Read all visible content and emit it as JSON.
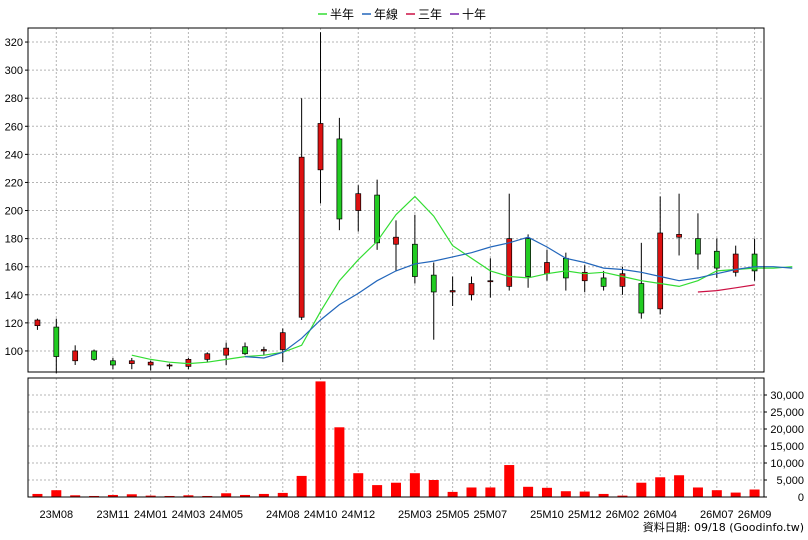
{
  "chart_data": {
    "type": "candlestick",
    "legend": [
      {
        "label": "半年",
        "color": "#33dd33"
      },
      {
        "label": "年線",
        "color": "#2266bb"
      },
      {
        "label": "三年",
        "color": "#cc1144"
      },
      {
        "label": "十年",
        "color": "#7722aa"
      }
    ],
    "colors": {
      "up": "#dd1111",
      "down": "#22cc22",
      "volume": "#ff0000"
    },
    "price_axis": {
      "ylim": [
        85,
        330
      ],
      "ticks": [
        100,
        120,
        140,
        160,
        180,
        200,
        220,
        240,
        260,
        280,
        300,
        320
      ]
    },
    "volume_axis": {
      "ylim": [
        0,
        35000
      ],
      "ticks": [
        0,
        5000,
        10000,
        15000,
        20000,
        25000,
        30000
      ],
      "tick_labels": [
        "0",
        "5,000",
        "10,000",
        "15,000",
        "20,000",
        "25,000",
        "30,000"
      ]
    },
    "x_labels": [
      {
        "label": "23M08",
        "index": 1
      },
      {
        "label": "23M11",
        "index": 4
      },
      {
        "label": "24M01",
        "index": 6
      },
      {
        "label": "24M03",
        "index": 8
      },
      {
        "label": "24M05",
        "index": 10
      },
      {
        "label": "24M08",
        "index": 13
      },
      {
        "label": "24M10",
        "index": 15
      },
      {
        "label": "24M12",
        "index": 17
      },
      {
        "label": "25M03",
        "index": 20
      },
      {
        "label": "25M05",
        "index": 22
      },
      {
        "label": "25M07",
        "index": 24
      },
      {
        "label": "25M10",
        "index": 27
      },
      {
        "label": "25M12",
        "index": 29
      },
      {
        "label": "26M02",
        "index": 31
      },
      {
        "label": "26M04",
        "index": 33
      },
      {
        "label": "26M07",
        "index": 36
      },
      {
        "label": "26M09",
        "index": 38
      }
    ],
    "candles": [
      {
        "o": 118,
        "h": 123,
        "l": 115,
        "c": 122
      },
      {
        "o": 117,
        "h": 123,
        "l": 84,
        "c": 96
      },
      {
        "o": 93,
        "h": 104,
        "l": 90,
        "c": 100
      },
      {
        "o": 100,
        "h": 101,
        "l": 93,
        "c": 94
      },
      {
        "o": 93,
        "h": 95,
        "l": 87,
        "c": 90
      },
      {
        "o": 91,
        "h": 95,
        "l": 87,
        "c": 93
      },
      {
        "o": 90,
        "h": 93,
        "l": 86,
        "c": 92
      },
      {
        "o": 90,
        "h": 91,
        "l": 87,
        "c": 90
      },
      {
        "o": 89,
        "h": 95,
        "l": 87,
        "c": 94
      },
      {
        "o": 94,
        "h": 99,
        "l": 92,
        "c": 98
      },
      {
        "o": 97,
        "h": 106,
        "l": 90,
        "c": 102
      },
      {
        "o": 103,
        "h": 106,
        "l": 97,
        "c": 98
      },
      {
        "o": 100,
        "h": 103,
        "l": 97,
        "c": 101
      },
      {
        "o": 101,
        "h": 116,
        "l": 92,
        "c": 113
      },
      {
        "o": 124,
        "h": 280,
        "l": 122,
        "c": 238
      },
      {
        "o": 229,
        "h": 327,
        "l": 205,
        "c": 262
      },
      {
        "o": 251,
        "h": 266,
        "l": 186,
        "c": 194
      },
      {
        "o": 200,
        "h": 218,
        "l": 185,
        "c": 212
      },
      {
        "o": 211,
        "h": 222,
        "l": 172,
        "c": 177
      },
      {
        "o": 176,
        "h": 193,
        "l": 157,
        "c": 181
      },
      {
        "o": 176,
        "h": 197,
        "l": 148,
        "c": 153
      },
      {
        "o": 154,
        "h": 163,
        "l": 108,
        "c": 142
      },
      {
        "o": 142,
        "h": 153,
        "l": 132,
        "c": 143
      },
      {
        "o": 140,
        "h": 153,
        "l": 136,
        "c": 148
      },
      {
        "o": 150,
        "h": 166,
        "l": 138,
        "c": 150
      },
      {
        "o": 146,
        "h": 212,
        "l": 143,
        "c": 180
      },
      {
        "o": 180,
        "h": 183,
        "l": 145,
        "c": 153
      },
      {
        "o": 155,
        "h": 172,
        "l": 150,
        "c": 163
      },
      {
        "o": 166,
        "h": 170,
        "l": 143,
        "c": 152
      },
      {
        "o": 150,
        "h": 161,
        "l": 142,
        "c": 156
      },
      {
        "o": 152,
        "h": 157,
        "l": 143,
        "c": 146
      },
      {
        "o": 146,
        "h": 160,
        "l": 140,
        "c": 155
      },
      {
        "o": 148,
        "h": 177,
        "l": 123,
        "c": 127
      },
      {
        "o": 130,
        "h": 210,
        "l": 126,
        "c": 184
      },
      {
        "o": 181,
        "h": 212,
        "l": 168,
        "c": 183
      },
      {
        "o": 180,
        "h": 198,
        "l": 158,
        "c": 169
      },
      {
        "o": 171,
        "h": 180,
        "l": 152,
        "c": 159
      },
      {
        "o": 156,
        "h": 175,
        "l": 153,
        "c": 169
      },
      {
        "o": 169,
        "h": 180,
        "l": 150,
        "c": 157
      }
    ],
    "volume": [
      900,
      2000,
      500,
      300,
      600,
      800,
      400,
      300,
      500,
      300,
      1100,
      600,
      900,
      1200,
      6200,
      34000,
      20500,
      7000,
      3500,
      4200,
      7000,
      5000,
      1500,
      2800,
      2800,
      9400,
      3000,
      2700,
      1700,
      1600,
      900,
      400,
      4200,
      5800,
      6400,
      2800,
      2000,
      1300,
      2200
    ],
    "series": [
      {
        "name": "半年",
        "color": "#33dd33",
        "start": 5,
        "values": [
          97,
          94,
          92,
          91,
          92,
          94,
          96,
          97,
          99,
          104,
          128,
          150,
          165,
          178,
          197,
          210,
          196,
          175,
          166,
          157,
          153,
          152,
          155,
          157,
          155,
          156,
          153,
          150,
          148,
          146,
          150,
          157,
          158,
          159,
          159,
          160
        ]
      },
      {
        "name": "年線",
        "color": "#2266bb",
        "start": 11,
        "values": [
          96,
          95,
          99,
          109,
          122,
          133,
          141,
          150,
          157,
          162,
          164,
          167,
          170,
          174,
          177,
          181,
          174,
          166,
          163,
          159,
          158,
          156,
          153,
          150,
          152,
          155,
          158,
          160,
          160,
          159
        ]
      },
      {
        "name": "三年",
        "color": "#cc1144",
        "start": 35,
        "values": [
          142,
          143,
          145,
          147
        ]
      }
    ]
  },
  "footer": {
    "text": "資料日期: 09/18 (Goodinfo.tw)"
  }
}
